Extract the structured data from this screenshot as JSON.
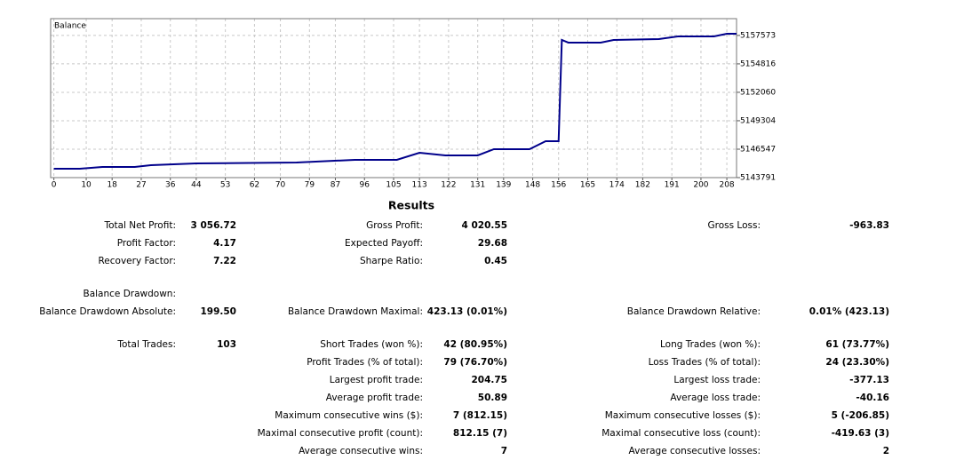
{
  "chart_data": {
    "type": "line",
    "x": [
      0,
      8,
      15,
      25,
      30,
      44,
      75,
      93,
      106,
      113,
      121,
      131,
      136,
      147,
      152,
      156,
      157,
      159,
      169,
      173,
      187,
      193,
      204,
      208,
      211
    ],
    "series": [
      {
        "name": "Balance",
        "color": "#00008b",
        "values": [
          5144652,
          5144652,
          5144824,
          5144824,
          5144997,
          5145169,
          5145255,
          5145513,
          5145513,
          5146202,
          5145944,
          5145944,
          5146547,
          5146547,
          5147321,
          5147321,
          5157137,
          5156878,
          5156878,
          5157137,
          5157223,
          5157482,
          5157482,
          5157740,
          5157740
        ]
      }
    ],
    "xlim": [
      -1,
      211
    ],
    "xticks": [
      0,
      10,
      18,
      27,
      36,
      44,
      53,
      62,
      70,
      79,
      87,
      96,
      105,
      113,
      122,
      131,
      139,
      148,
      156,
      165,
      174,
      182,
      191,
      200,
      208
    ],
    "ylim": [
      5143791,
      5159200
    ],
    "yticks": [
      5143791,
      5146547,
      5149304,
      5152060,
      5154816,
      5157573
    ],
    "grid": true
  },
  "results": {
    "title": "Results",
    "rows": [
      {
        "left": {
          "label": "Total Net Profit:",
          "value": "3 056.72"
        },
        "middle": {
          "label": "Gross Profit:",
          "value": "4 020.55"
        },
        "right": {
          "label": "Gross Loss:",
          "value": "-963.83"
        }
      },
      {
        "left": {
          "label": "Profit Factor:",
          "value": "4.17"
        },
        "middle": {
          "label": "Expected Payoff:",
          "value": "29.68"
        }
      },
      {
        "left": {
          "label": "Recovery Factor:",
          "value": "7.22"
        },
        "middle": {
          "label": "Sharpe Ratio:",
          "value": "0.45"
        }
      },
      {
        "left": {
          "label": "Balance Drawdown:"
        }
      },
      {
        "left": {
          "label": "Balance Drawdown Absolute:",
          "value": "199.50"
        },
        "middle": {
          "label": "Balance Drawdown Maximal:",
          "value": "423.13 (0.01%)"
        },
        "right": {
          "label": "Balance Drawdown Relative:",
          "value": "0.01% (423.13)"
        }
      },
      {
        "left": {
          "label": "Total Trades:",
          "value": "103"
        },
        "middle": {
          "label": "Short Trades (won %):",
          "value": "42 (80.95%)"
        },
        "right": {
          "label": "Long Trades (won %):",
          "value": "61 (73.77%)"
        }
      },
      {
        "middle": {
          "label": "Profit Trades (% of total):",
          "value": "79 (76.70%)"
        },
        "right": {
          "label": "Loss Trades (% of total):",
          "value": "24 (23.30%)"
        }
      },
      {
        "middle": {
          "label": "Largest profit trade:",
          "value": "204.75"
        },
        "right": {
          "label": "Largest loss trade:",
          "value": "-377.13"
        }
      },
      {
        "middle": {
          "label": "Average profit trade:",
          "value": "50.89"
        },
        "right": {
          "label": "Average loss trade:",
          "value": "-40.16"
        }
      },
      {
        "middle": {
          "label": "Maximum consecutive wins ($):",
          "value": "7 (812.15)"
        },
        "right": {
          "label": "Maximum consecutive losses ($):",
          "value": "5 (-206.85)"
        }
      },
      {
        "middle": {
          "label": "Maximal consecutive profit (count):",
          "value": "812.15 (7)"
        },
        "right": {
          "label": "Maximal consecutive loss (count):",
          "value": "-419.63 (3)"
        }
      },
      {
        "middle": {
          "label": "Average consecutive wins:",
          "value": "7"
        },
        "right": {
          "label": "Average consecutive losses:",
          "value": "2"
        }
      }
    ]
  }
}
